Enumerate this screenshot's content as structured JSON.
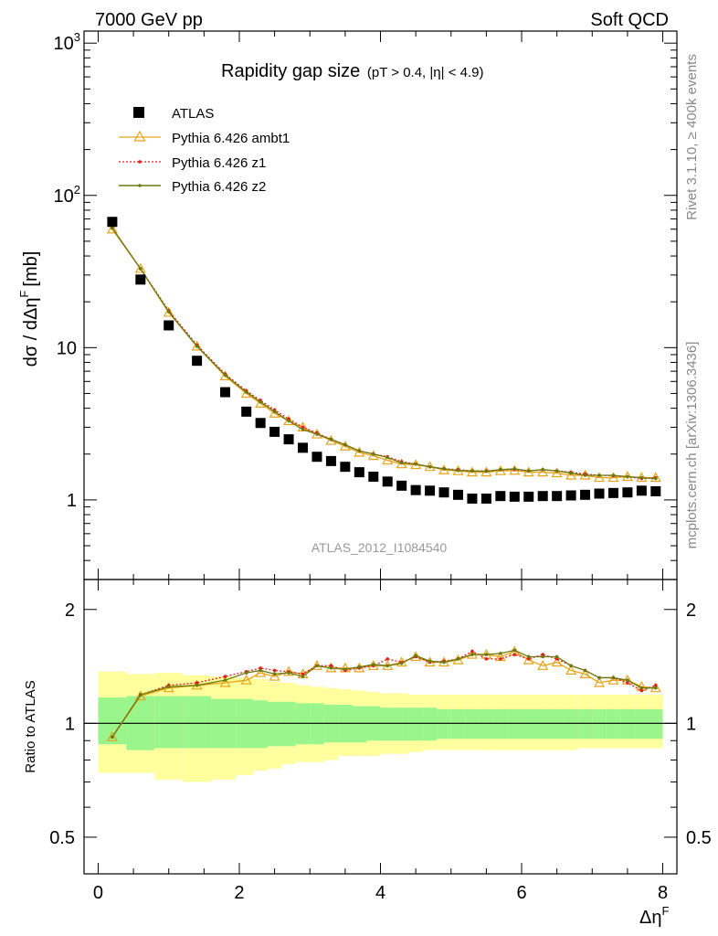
{
  "header": {
    "left": "7000 GeV pp",
    "right": "Soft QCD",
    "title_main": "Rapidity gap size",
    "title_cuts": "(pT > 0.4, |η| < 4.9)",
    "ylabel_main": "dσ / dΔη",
    "ylabel_super": "F",
    "ylabel_unit": "[mb]",
    "ratio_ylabel": "Ratio to ATLAS",
    "xlabel_main": "Δη",
    "xlabel_super": "F",
    "side_rivet": "Rivet 3.1.10, ≥ 400k events",
    "side_url": "mcplots.cern.ch [arXiv:1306.3436]",
    "analysis_id": "ATLAS_2012_I1084540"
  },
  "legend": [
    {
      "label": "ATLAS",
      "marker": "square",
      "color": "#000000"
    },
    {
      "label": "Pythia 6.426 ambt1",
      "marker": "triangle",
      "color": "#e8a317"
    },
    {
      "label": "Pythia 6.426 z1",
      "marker": "dot-dotted",
      "color": "#e0201e"
    },
    {
      "label": "Pythia 6.426 z2",
      "marker": "dot-solid",
      "color": "#6b7a10"
    }
  ],
  "chart_data": {
    "type": "scatter",
    "x": [
      0.2,
      0.6,
      1.0,
      1.4,
      1.8,
      2.1,
      2.3,
      2.5,
      2.7,
      2.9,
      3.1,
      3.3,
      3.5,
      3.7,
      3.9,
      4.1,
      4.3,
      4.5,
      4.7,
      4.9,
      5.1,
      5.3,
      5.5,
      5.7,
      5.9,
      6.1,
      6.3,
      6.5,
      6.7,
      6.9,
      7.1,
      7.3,
      7.5,
      7.7,
      7.9
    ],
    "xlim": [
      -0.2,
      8.2
    ],
    "xticks": [
      0,
      2,
      4,
      6,
      8
    ],
    "main": {
      "yscale": "log",
      "ylim": [
        0.3,
        1200
      ],
      "yticks": [
        {
          "v": 1,
          "label": "1"
        },
        {
          "v": 10,
          "label": "10"
        },
        {
          "v": 100,
          "label": "10",
          "sup": "2"
        },
        {
          "v": 1000,
          "label": "10",
          "sup": "3"
        }
      ],
      "series": [
        {
          "name": "ATLAS",
          "values": [
            67,
            28,
            14,
            8.2,
            5.1,
            3.8,
            3.2,
            2.8,
            2.5,
            2.2,
            1.92,
            1.8,
            1.65,
            1.52,
            1.42,
            1.32,
            1.24,
            1.16,
            1.15,
            1.12,
            1.08,
            1.02,
            1.02,
            1.06,
            1.05,
            1.05,
            1.06,
            1.06,
            1.07,
            1.08,
            1.1,
            1.11,
            1.12,
            1.15,
            1.14
          ]
        },
        {
          "name": "Pythia 6.426 ambt1",
          "values": [
            60,
            33,
            17,
            10.2,
            6.5,
            5.0,
            4.3,
            3.7,
            3.3,
            3.0,
            2.7,
            2.45,
            2.25,
            2.05,
            1.95,
            1.82,
            1.72,
            1.7,
            1.65,
            1.57,
            1.55,
            1.52,
            1.52,
            1.55,
            1.56,
            1.52,
            1.52,
            1.5,
            1.45,
            1.45,
            1.4,
            1.4,
            1.42,
            1.4,
            1.4
          ]
        },
        {
          "name": "Pythia 6.426 z1",
          "values": [
            61,
            33,
            17.5,
            10.4,
            6.7,
            5.2,
            4.5,
            3.9,
            3.4,
            3.0,
            2.75,
            2.5,
            2.3,
            2.1,
            2.0,
            1.92,
            1.78,
            1.72,
            1.65,
            1.6,
            1.58,
            1.55,
            1.55,
            1.58,
            1.58,
            1.55,
            1.58,
            1.55,
            1.52,
            1.48,
            1.45,
            1.44,
            1.42,
            1.38,
            1.4
          ]
        },
        {
          "name": "Pythia 6.426 z2",
          "values": [
            61,
            33,
            17.2,
            10.2,
            6.6,
            5.1,
            4.4,
            3.8,
            3.3,
            2.9,
            2.7,
            2.5,
            2.3,
            2.1,
            2.0,
            1.9,
            1.75,
            1.72,
            1.65,
            1.6,
            1.56,
            1.55,
            1.54,
            1.58,
            1.6,
            1.55,
            1.58,
            1.55,
            1.5,
            1.45,
            1.45,
            1.45,
            1.42,
            1.4,
            1.38
          ]
        }
      ]
    },
    "ratio": {
      "yscale": "log",
      "ylim": [
        0.4,
        2.4
      ],
      "yticks": [
        {
          "v": 0.5,
          "label": "0.5"
        },
        {
          "v": 1,
          "label": "1"
        },
        {
          "v": 2,
          "label": "2"
        }
      ],
      "band_stat_sys_lo": [
        0.88,
        0.85,
        0.86,
        0.86,
        0.86,
        0.86,
        0.86,
        0.87,
        0.87,
        0.88,
        0.88,
        0.89,
        0.89,
        0.89,
        0.9,
        0.9,
        0.9,
        0.9,
        0.9,
        0.91,
        0.91,
        0.91,
        0.91,
        0.91,
        0.91,
        0.91,
        0.91,
        0.91,
        0.91,
        0.91,
        0.91,
        0.91,
        0.91,
        0.91,
        0.91
      ],
      "band_stat_sys_hi": [
        1.17,
        1.18,
        1.18,
        1.18,
        1.16,
        1.16,
        1.15,
        1.14,
        1.14,
        1.13,
        1.13,
        1.12,
        1.12,
        1.11,
        1.11,
        1.1,
        1.1,
        1.1,
        1.1,
        1.09,
        1.09,
        1.09,
        1.09,
        1.09,
        1.09,
        1.09,
        1.09,
        1.09,
        1.09,
        1.09,
        1.09,
        1.09,
        1.09,
        1.09,
        1.09
      ],
      "band_total_lo": [
        0.74,
        0.74,
        0.71,
        0.7,
        0.71,
        0.73,
        0.75,
        0.76,
        0.78,
        0.79,
        0.79,
        0.8,
        0.82,
        0.82,
        0.82,
        0.83,
        0.83,
        0.84,
        0.85,
        0.85,
        0.85,
        0.85,
        0.85,
        0.85,
        0.85,
        0.85,
        0.85,
        0.85,
        0.85,
        0.86,
        0.86,
        0.86,
        0.86,
        0.86,
        0.86
      ],
      "band_total_hi": [
        1.37,
        1.35,
        1.36,
        1.34,
        1.33,
        1.32,
        1.31,
        1.29,
        1.28,
        1.26,
        1.25,
        1.24,
        1.23,
        1.22,
        1.21,
        1.2,
        1.2,
        1.19,
        1.19,
        1.19,
        1.19,
        1.19,
        1.19,
        1.19,
        1.19,
        1.19,
        1.19,
        1.19,
        1.19,
        1.19,
        1.19,
        1.19,
        1.19,
        1.19,
        1.19
      ],
      "series": [
        {
          "name": "Pythia 6.426 ambt1",
          "values": [
            0.92,
            1.18,
            1.24,
            1.26,
            1.28,
            1.3,
            1.36,
            1.33,
            1.37,
            1.35,
            1.42,
            1.4,
            1.4,
            1.4,
            1.42,
            1.42,
            1.45,
            1.5,
            1.45,
            1.45,
            1.47,
            1.52,
            1.52,
            1.5,
            1.55,
            1.47,
            1.42,
            1.45,
            1.38,
            1.35,
            1.28,
            1.3,
            1.3,
            1.25,
            1.24
          ]
        },
        {
          "name": "Pythia 6.426 z1",
          "values": [
            0.92,
            1.19,
            1.26,
            1.28,
            1.33,
            1.37,
            1.4,
            1.38,
            1.37,
            1.35,
            1.42,
            1.42,
            1.38,
            1.4,
            1.42,
            1.48,
            1.45,
            1.5,
            1.45,
            1.46,
            1.48,
            1.55,
            1.48,
            1.48,
            1.52,
            1.48,
            1.52,
            1.48,
            1.42,
            1.38,
            1.32,
            1.32,
            1.28,
            1.22,
            1.26
          ]
        },
        {
          "name": "Pythia 6.426 z2",
          "values": [
            0.92,
            1.19,
            1.25,
            1.26,
            1.3,
            1.36,
            1.38,
            1.35,
            1.36,
            1.33,
            1.42,
            1.4,
            1.39,
            1.41,
            1.43,
            1.42,
            1.44,
            1.51,
            1.46,
            1.45,
            1.48,
            1.52,
            1.52,
            1.53,
            1.56,
            1.5,
            1.5,
            1.5,
            1.42,
            1.38,
            1.32,
            1.32,
            1.3,
            1.24,
            1.24
          ]
        }
      ]
    }
  }
}
